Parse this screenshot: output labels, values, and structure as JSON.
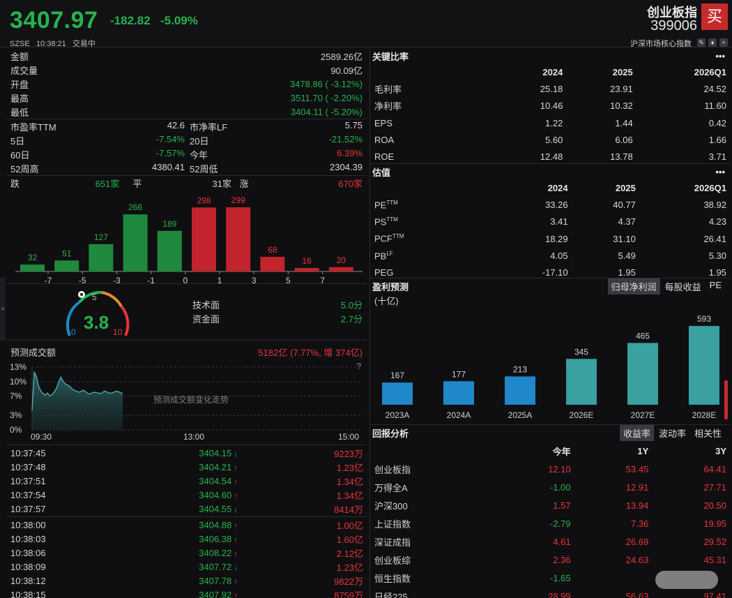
{
  "header": {
    "price": "3407.97",
    "change": "-182.82",
    "change_pct": "-5.09%",
    "exchange": "SZSE",
    "time": "10:38:21",
    "status": "交易中",
    "index_name": "创业板指",
    "index_code": "399006",
    "buy_label": "买",
    "index_category": "沪深市场核心指数",
    "icons": [
      "edit-icon",
      "bell-icon",
      "plus-icon"
    ]
  },
  "quote": {
    "amount_label": "金额",
    "amount": "2589.26亿",
    "volume_label": "成交量",
    "volume": "90.09亿",
    "open_label": "开盘",
    "open": "3478.86 ( -3.12%)",
    "high_label": "最高",
    "high": "3511.70 ( -2.20%)",
    "low_label": "最低",
    "low": "3404.11 ( -5.20%)"
  },
  "stats": [
    {
      "l1": "市盈率TTM",
      "v1": "42.6",
      "c1": "w",
      "l2": "市净率LF",
      "v2": "5.75",
      "c2": "w"
    },
    {
      "l1": "5日",
      "v1": "-7.54%",
      "c1": "g",
      "l2": "20日",
      "v2": "-21.52%",
      "c2": "g"
    },
    {
      "l1": "60日",
      "v1": "-7.57%",
      "c1": "g",
      "l2": "今年",
      "v2": "6.39%",
      "c2": "r"
    },
    {
      "l1": "52周高",
      "v1": "4380.41",
      "c1": "w",
      "l2": "52周低",
      "v2": "2304.39",
      "c2": "w"
    }
  ],
  "breadth": {
    "down_label": "跌",
    "down": "651家",
    "flat_label": "平",
    "flat": "31家",
    "up_label": "涨",
    "up": "670家"
  },
  "distribution": {
    "values": [
      32,
      51,
      127,
      266,
      189,
      298,
      299,
      68,
      16,
      20
    ],
    "colors": [
      "g",
      "g",
      "g",
      "g",
      "g",
      "r",
      "r",
      "r",
      "r",
      "r"
    ],
    "ticks": [
      "-7",
      "-5",
      "-3",
      "-1",
      "0",
      "1",
      "3",
      "5",
      "7"
    ]
  },
  "score": {
    "value": "3.8",
    "min": "0",
    "mid": "5",
    "max": "10",
    "tech_label": "技术面",
    "tech": "5.0分",
    "fund_label": "资金面",
    "fund": "2.7分"
  },
  "forecast": {
    "title": "预测成交额",
    "summary": "5182亿 (7.77%, 增 374亿)",
    "help": "?",
    "y_ticks": [
      "13%",
      "10%",
      "7%",
      "3%",
      "0%"
    ],
    "x_ticks": [
      "09:30",
      "13:00",
      "15:00"
    ],
    "hint": "预测成交额变化走势",
    "series": [
      4,
      12,
      11,
      9,
      8,
      7.5,
      7.2,
      7.6,
      7,
      7.3,
      7.8,
      8.6,
      9.8,
      10.9,
      10.1,
      9.5,
      9.3,
      9.0,
      8.5,
      8.2,
      8.0,
      7.8,
      7.9,
      8.2,
      8.0,
      7.6,
      7.4,
      7.6,
      7.8,
      7.7,
      7.6,
      7.5,
      7.8,
      8.0,
      7.8,
      7.6,
      7.6,
      7.8,
      8.0,
      7.9,
      7.7,
      7.5
    ]
  },
  "ticks": [
    {
      "t": "10:37:45",
      "p": "3404.15",
      "d": "down",
      "v": "9223万"
    },
    {
      "t": "10:37:48",
      "p": "3404.21",
      "d": "up",
      "v": "1.23亿"
    },
    {
      "t": "10:37:51",
      "p": "3404.54",
      "d": "up",
      "v": "1.34亿"
    },
    {
      "t": "10:37:54",
      "p": "3404.60",
      "d": "up",
      "v": "1.34亿"
    },
    {
      "t": "10:37:57",
      "p": "3404.55",
      "d": "down",
      "v": "8414万"
    },
    {
      "t": "10:38:00",
      "p": "3404.88",
      "d": "up",
      "v": "1.00亿"
    },
    {
      "t": "10:38:03",
      "p": "3406.38",
      "d": "up",
      "v": "1.60亿"
    },
    {
      "t": "10:38:06",
      "p": "3408.22",
      "d": "up",
      "v": "2.12亿"
    },
    {
      "t": "10:38:09",
      "p": "3407.72",
      "d": "down",
      "v": "1.23亿"
    },
    {
      "t": "10:38:12",
      "p": "3407.78",
      "d": "up",
      "v": "9822万"
    },
    {
      "t": "10:38:15",
      "p": "3407.92",
      "d": "up",
      "v": "8759万"
    }
  ],
  "ratios": {
    "title": "关键比率",
    "cols": [
      "2024",
      "2025",
      "2026Q1"
    ],
    "rows": [
      {
        "name": "毛利率",
        "v": [
          "25.18",
          "23.91",
          "24.52"
        ]
      },
      {
        "name": "净利率",
        "v": [
          "10.46",
          "10.32",
          "11.60"
        ]
      },
      {
        "name": "EPS",
        "v": [
          "1.22",
          "1.44",
          "0.42"
        ]
      },
      {
        "name": "ROA",
        "v": [
          "5.60",
          "6.06",
          "1.66"
        ]
      },
      {
        "name": "ROE",
        "v": [
          "12.48",
          "13.78",
          "3.71"
        ]
      }
    ]
  },
  "valuation": {
    "title": "估值",
    "cols": [
      "2024",
      "2025",
      "2026Q1"
    ],
    "rows": [
      {
        "name": "PE",
        "sup": "TTM",
        "v": [
          "33.26",
          "40.77",
          "38.92"
        ]
      },
      {
        "name": "PS",
        "sup": "TTM",
        "v": [
          "3.41",
          "4.37",
          "4.23"
        ]
      },
      {
        "name": "PCF",
        "sup": "TTM",
        "v": [
          "18.29",
          "31.10",
          "26.41"
        ]
      },
      {
        "name": "PB",
        "sup": "LF",
        "v": [
          "4.05",
          "5.49",
          "5.30"
        ]
      },
      {
        "name": "PEG",
        "sup": "",
        "v": [
          "-17.10",
          "1.95",
          "1.95"
        ]
      }
    ]
  },
  "earnings": {
    "title": "盈利预测",
    "tabs": [
      "归母净利润",
      "每股收益",
      "PE"
    ],
    "unit": "(十亿)"
  },
  "chart_data": {
    "type": "bar",
    "categories": [
      "2023A",
      "2024A",
      "2025A",
      "2026E",
      "2027E",
      "2028E"
    ],
    "values": [
      167,
      177,
      213,
      345,
      465,
      593
    ],
    "colors": [
      "#1e88c8",
      "#1e88c8",
      "#1e88c8",
      "#3aa0a0",
      "#3aa0a0",
      "#3aa0a0"
    ],
    "ylim": [
      0,
      620
    ]
  },
  "returns": {
    "title": "回报分析",
    "tabs": [
      "收益率",
      "波动率",
      "相关性"
    ],
    "cols": [
      "今年",
      "1Y",
      "3Y"
    ],
    "rows": [
      {
        "name": "创业板指",
        "v": [
          "12.10",
          "53.45",
          "64.41"
        ],
        "c": [
          "r",
          "r",
          "r"
        ]
      },
      {
        "name": "万得全A",
        "v": [
          "-1.00",
          "12.91",
          "27.71"
        ],
        "c": [
          "g",
          "r",
          "r"
        ]
      },
      {
        "name": "沪深300",
        "v": [
          "1.57",
          "13.94",
          "20.50"
        ],
        "c": [
          "r",
          "r",
          "r"
        ]
      },
      {
        "name": "上证指数",
        "v": [
          "-2.79",
          "7.36",
          "19.95"
        ],
        "c": [
          "g",
          "r",
          "r"
        ]
      },
      {
        "name": "深证成指",
        "v": [
          "4.61",
          "26.69",
          "29.52"
        ],
        "c": [
          "r",
          "r",
          "r"
        ]
      },
      {
        "name": "创业板综",
        "v": [
          "2.36",
          "24.63",
          "45.31"
        ],
        "c": [
          "r",
          "r",
          "r"
        ]
      },
      {
        "name": "恒生指数",
        "v": [
          "-1.65",
          "",
          ""
        ],
        "c": [
          "g",
          "r",
          "r"
        ]
      },
      {
        "name": "日经225",
        "v": [
          "28.99",
          "56.63",
          "97.41"
        ],
        "c": [
          "r",
          "r",
          "r"
        ]
      }
    ]
  }
}
